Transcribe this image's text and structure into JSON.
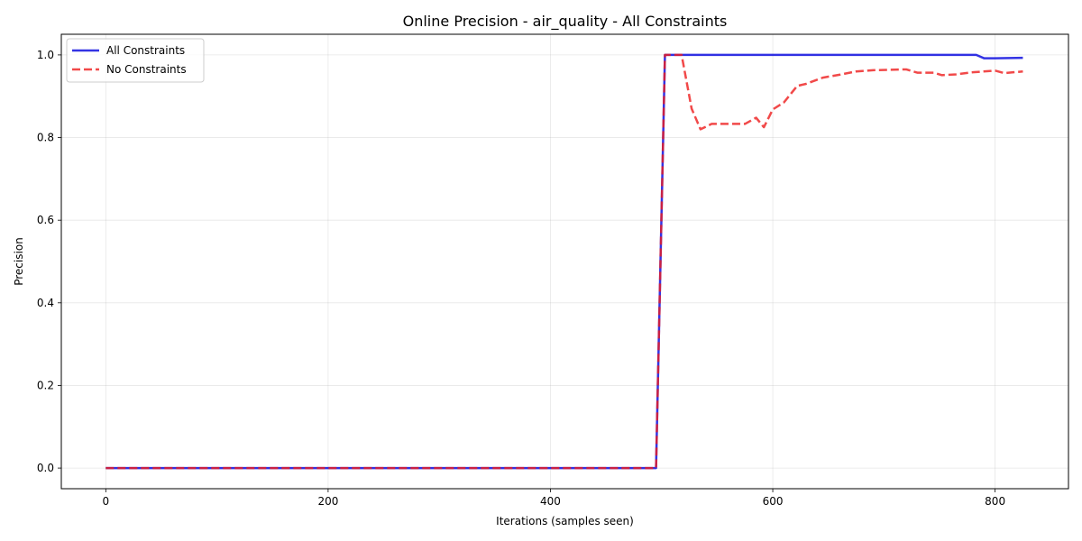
{
  "chart_data": {
    "type": "line",
    "title": "Online Precision - air_quality - All Constraints",
    "xlabel": "Iterations (samples seen)",
    "ylabel": "Precision",
    "xlim": [
      -40,
      866
    ],
    "ylim": [
      -0.05,
      1.05
    ],
    "xticks": [
      0,
      200,
      400,
      600,
      800
    ],
    "yticks": [
      0.0,
      0.2,
      0.4,
      0.6,
      0.8,
      1.0
    ],
    "xtick_labels": [
      "0",
      "200",
      "400",
      "600",
      "800"
    ],
    "ytick_labels": [
      "0.0",
      "0.2",
      "0.4",
      "0.6",
      "0.8",
      "1.0"
    ],
    "grid": true,
    "legend_position": "top-left",
    "series": [
      {
        "name": "All Constraints",
        "color": "#0000dd",
        "style": "solid",
        "points": [
          [
            0,
            0.0
          ],
          [
            495,
            0.0
          ],
          [
            503,
            1.0
          ],
          [
            600,
            1.0
          ],
          [
            700,
            1.0
          ],
          [
            783,
            1.0
          ],
          [
            790,
            0.992
          ],
          [
            800,
            0.992
          ],
          [
            825,
            0.993
          ]
        ]
      },
      {
        "name": "No Constraints",
        "color": "#ee1c1c",
        "style": "dashed",
        "points": [
          [
            0,
            0.0
          ],
          [
            495,
            0.0
          ],
          [
            503,
            1.0
          ],
          [
            518,
            1.0
          ],
          [
            527,
            0.87
          ],
          [
            535,
            0.82
          ],
          [
            545,
            0.833
          ],
          [
            575,
            0.833
          ],
          [
            585,
            0.848
          ],
          [
            592,
            0.825
          ],
          [
            600,
            0.868
          ],
          [
            610,
            0.885
          ],
          [
            622,
            0.925
          ],
          [
            630,
            0.93
          ],
          [
            645,
            0.945
          ],
          [
            660,
            0.952
          ],
          [
            675,
            0.96
          ],
          [
            690,
            0.963
          ],
          [
            705,
            0.964
          ],
          [
            720,
            0.965
          ],
          [
            730,
            0.957
          ],
          [
            745,
            0.957
          ],
          [
            752,
            0.951
          ],
          [
            765,
            0.953
          ],
          [
            780,
            0.958
          ],
          [
            800,
            0.962
          ],
          [
            808,
            0.956
          ],
          [
            825,
            0.96
          ]
        ]
      }
    ]
  }
}
